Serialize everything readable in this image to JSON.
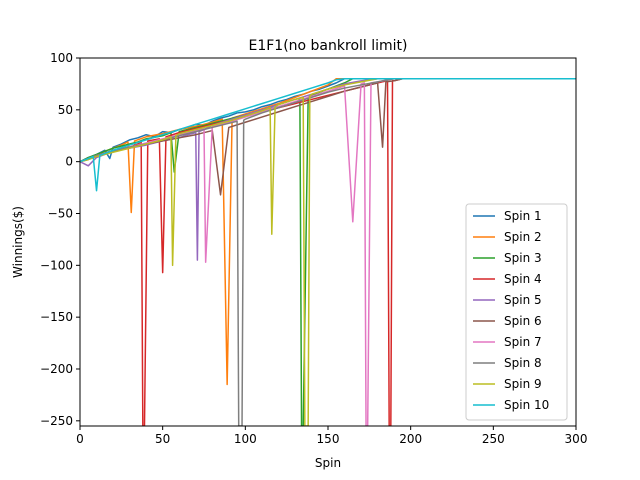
{
  "chart_data": {
    "type": "line",
    "title": "E1F1(no bankroll limit)",
    "xlabel": "Spin",
    "ylabel": "Winnings($)",
    "xlim": [
      0,
      300
    ],
    "ylim": [
      -255,
      100
    ],
    "xticks": [
      0,
      50,
      100,
      150,
      200,
      250,
      300
    ],
    "yticks": [
      -250,
      -200,
      -150,
      -100,
      -50,
      0,
      50,
      100
    ],
    "grid": false,
    "legend_position": "bottom-right",
    "series": [
      {
        "name": "Spin 1",
        "color": "#1f77b4",
        "x": [
          0,
          5,
          10,
          15,
          18,
          20,
          25,
          30,
          35,
          40,
          45,
          50,
          55,
          60,
          65,
          70,
          75,
          80,
          85,
          90,
          95,
          100,
          105,
          110,
          115,
          120,
          125,
          130,
          135,
          140,
          145,
          150,
          155,
          160,
          300
        ],
        "y": [
          0,
          4,
          7,
          11,
          3,
          14,
          17,
          21,
          23,
          26,
          24,
          29,
          28,
          31,
          33,
          36,
          35,
          39,
          42,
          44,
          47,
          48,
          50,
          53,
          55,
          58,
          60,
          63,
          65,
          68,
          70,
          73,
          76,
          80,
          80
        ]
      },
      {
        "name": "Spin 2",
        "color": "#ff7f0e",
        "x": [
          0,
          5,
          10,
          15,
          20,
          25,
          29,
          31,
          33,
          40,
          50,
          60,
          70,
          80,
          86,
          89,
          92,
          100,
          110,
          120,
          130,
          140,
          150,
          155,
          300
        ],
        "y": [
          0,
          3,
          6,
          10,
          13,
          16,
          19,
          -49,
          20,
          24,
          27,
          31,
          34,
          38,
          41,
          -215,
          42,
          46,
          51,
          56,
          62,
          68,
          74,
          80,
          80
        ]
      },
      {
        "name": "Spin 3",
        "color": "#2ca02c",
        "x": [
          0,
          5,
          10,
          15,
          20,
          25,
          30,
          35,
          40,
          50,
          55,
          57,
          60,
          70,
          80,
          90,
          100,
          110,
          120,
          130,
          133,
          134,
          135,
          138,
          140,
          150,
          160,
          165,
          300
        ],
        "y": [
          0,
          4,
          7,
          10,
          13,
          15,
          17,
          19,
          22,
          25,
          28,
          -10,
          29,
          33,
          37,
          41,
          45,
          49,
          53,
          57,
          60,
          -255,
          -255,
          62,
          64,
          70,
          76,
          80,
          80
        ]
      },
      {
        "name": "Spin 4",
        "color": "#d62728",
        "x": [
          0,
          5,
          10,
          15,
          20,
          30,
          35,
          37,
          38,
          39,
          41,
          48,
          50,
          52,
          60,
          70,
          80,
          90,
          100,
          110,
          120,
          130,
          140,
          150,
          160,
          170,
          180,
          186,
          187,
          188,
          189,
          190,
          195,
          300
        ],
        "y": [
          0,
          3,
          5,
          8,
          11,
          14,
          17,
          19,
          -255,
          -255,
          20,
          22,
          -107,
          24,
          28,
          32,
          36,
          40,
          44,
          48,
          52,
          56,
          60,
          64,
          68,
          72,
          76,
          78,
          -255,
          -255,
          78,
          78,
          80,
          80
        ]
      },
      {
        "name": "Spin 5",
        "color": "#9467bd",
        "x": [
          0,
          5,
          10,
          15,
          20,
          30,
          40,
          50,
          60,
          65,
          70,
          71,
          72,
          75,
          80,
          90,
          100,
          110,
          120,
          130,
          140,
          150,
          160,
          170,
          175,
          180,
          300
        ],
        "y": [
          0,
          -4,
          4,
          7,
          10,
          13,
          16,
          20,
          23,
          26,
          28,
          -95,
          29,
          31,
          35,
          40,
          45,
          50,
          55,
          60,
          65,
          70,
          75,
          78,
          79,
          80,
          80
        ]
      },
      {
        "name": "Spin 6",
        "color": "#8c564b",
        "x": [
          0,
          5,
          10,
          15,
          20,
          30,
          40,
          50,
          60,
          70,
          80,
          85,
          90,
          100,
          110,
          120,
          130,
          140,
          150,
          160,
          170,
          180,
          183,
          185,
          190,
          195,
          300
        ],
        "y": [
          0,
          2,
          5,
          8,
          11,
          14,
          17,
          20,
          23,
          26,
          30,
          -32,
          33,
          38,
          43,
          48,
          53,
          58,
          63,
          68,
          72,
          76,
          14,
          77,
          78,
          80,
          80
        ]
      },
      {
        "name": "Spin 7",
        "color": "#e377c2",
        "x": [
          0,
          5,
          10,
          20,
          30,
          40,
          50,
          60,
          70,
          75,
          76,
          80,
          90,
          100,
          110,
          120,
          130,
          140,
          150,
          160,
          165,
          170,
          172,
          173,
          174,
          176,
          180,
          190,
          300
        ],
        "y": [
          0,
          3,
          6,
          10,
          14,
          18,
          22,
          26,
          30,
          32,
          -97,
          34,
          38,
          43,
          48,
          53,
          58,
          63,
          68,
          73,
          -58,
          75,
          76,
          -255,
          -255,
          76,
          77,
          80,
          80
        ]
      },
      {
        "name": "Spin 8",
        "color": "#7f7f7f",
        "x": [
          0,
          5,
          10,
          20,
          30,
          40,
          50,
          60,
          70,
          80,
          90,
          95,
          96,
          97,
          98,
          99,
          100,
          110,
          120,
          130,
          140,
          150,
          160,
          170,
          180,
          190,
          300
        ],
        "y": [
          0,
          3,
          6,
          10,
          14,
          17,
          21,
          25,
          29,
          33,
          37,
          39,
          -255,
          -255,
          -255,
          40,
          41,
          47,
          52,
          57,
          62,
          67,
          71,
          74,
          77,
          80,
          80
        ]
      },
      {
        "name": "Spin 9",
        "color": "#bcbd22",
        "x": [
          0,
          5,
          10,
          20,
          30,
          40,
          50,
          55,
          56,
          58,
          60,
          70,
          80,
          90,
          100,
          110,
          115,
          116,
          118,
          120,
          130,
          135,
          136,
          137,
          138,
          139,
          140,
          150,
          160,
          170,
          180,
          300
        ],
        "y": [
          0,
          2,
          5,
          9,
          13,
          17,
          21,
          24,
          -100,
          25,
          27,
          31,
          35,
          39,
          44,
          49,
          52,
          -70,
          53,
          55,
          60,
          62,
          -255,
          -255,
          -255,
          63,
          65,
          70,
          74,
          77,
          80,
          80
        ]
      },
      {
        "name": "Spin 10",
        "color": "#17becf",
        "x": [
          0,
          5,
          8,
          10,
          12,
          20,
          30,
          40,
          50,
          60,
          70,
          80,
          90,
          100,
          110,
          120,
          130,
          140,
          150,
          155,
          160,
          300
        ],
        "y": [
          0,
          3,
          5,
          -28,
          6,
          11,
          16,
          21,
          26,
          31,
          36,
          41,
          46,
          51,
          56,
          61,
          66,
          71,
          76,
          79,
          80,
          80
        ]
      }
    ]
  }
}
